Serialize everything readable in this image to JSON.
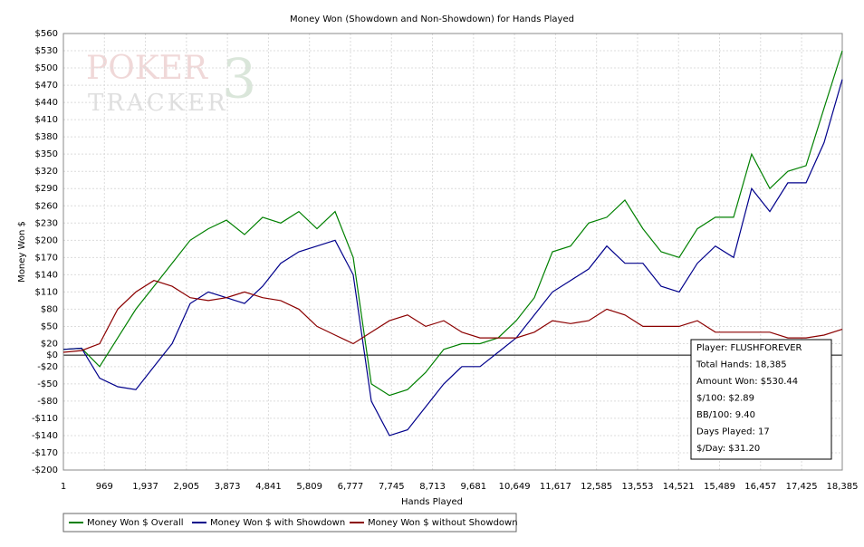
{
  "chart_data": {
    "type": "line",
    "title": "Money Won (Showdown and Non-Showdown) for Hands Played",
    "xlabel": "Hands Played",
    "ylabel": "Money Won $",
    "watermark": [
      "POKER",
      "TRACKER",
      "3"
    ],
    "x": [
      1,
      429,
      856,
      1284,
      1711,
      2139,
      2566,
      2994,
      3421,
      3849,
      4276,
      4704,
      5131,
      5559,
      5986,
      6414,
      6841,
      7269,
      7696,
      8124,
      8551,
      8979,
      9406,
      9834,
      10261,
      10689,
      11116,
      11544,
      11971,
      12399,
      12826,
      13254,
      13681,
      14109,
      14536,
      14964,
      15391,
      15819,
      16246,
      16674,
      17101,
      17529,
      17956,
      18385
    ],
    "series": [
      {
        "name": "Money Won $ Overall",
        "color": "#008000",
        "values": [
          10,
          12,
          -20,
          30,
          80,
          120,
          160,
          200,
          220,
          235,
          210,
          240,
          230,
          250,
          220,
          250,
          170,
          -50,
          -70,
          -60,
          -30,
          10,
          20,
          20,
          30,
          60,
          100,
          180,
          190,
          230,
          240,
          270,
          220,
          180,
          170,
          220,
          240,
          240,
          350,
          290,
          320,
          330,
          430,
          530
        ]
      },
      {
        "name": "Money Won $ with Showdown",
        "color": "#00008b",
        "values": [
          10,
          12,
          -40,
          -55,
          -60,
          -20,
          20,
          90,
          110,
          100,
          90,
          120,
          160,
          180,
          190,
          200,
          140,
          -80,
          -140,
          -130,
          -90,
          -50,
          -20,
          -20,
          5,
          30,
          70,
          110,
          130,
          150,
          190,
          160,
          160,
          120,
          110,
          160,
          190,
          170,
          290,
          250,
          300,
          300,
          370,
          480
        ]
      },
      {
        "name": "Money Won $ without Showdown",
        "color": "#8b0000",
        "values": [
          5,
          8,
          20,
          80,
          110,
          130,
          120,
          100,
          95,
          100,
          110,
          100,
          95,
          80,
          50,
          35,
          20,
          40,
          60,
          70,
          50,
          60,
          40,
          30,
          30,
          30,
          40,
          60,
          55,
          60,
          80,
          70,
          50,
          50,
          50,
          60,
          40,
          40,
          40,
          40,
          30,
          30,
          35,
          45
        ]
      }
    ],
    "xlim": [
      1,
      18385
    ],
    "xticks": [
      1,
      969,
      {
        "value": 1937,
        "label": "1,937"
      },
      {
        "value": 2905,
        "label": "2,905"
      },
      {
        "value": 3873,
        "label": "3,873"
      },
      {
        "value": 4841,
        "label": "4,841"
      },
      {
        "value": 5809,
        "label": "5,809"
      },
      {
        "value": 6777,
        "label": "6,777"
      },
      {
        "value": 7745,
        "label": "7,745"
      },
      {
        "value": 8713,
        "label": "8,713"
      },
      {
        "value": 9681,
        "label": "9,681"
      },
      {
        "value": 10649,
        "label": "10,649"
      },
      {
        "value": 11617,
        "label": "11,617"
      },
      {
        "value": 12585,
        "label": "12,585"
      },
      {
        "value": 13553,
        "label": "13,553"
      },
      {
        "value": 14521,
        "label": "14,521"
      },
      {
        "value": 15489,
        "label": "15,489"
      },
      {
        "value": 16457,
        "label": "16,457"
      },
      {
        "value": 17425,
        "label": "17,425"
      },
      {
        "value": 18385,
        "label": "18,385"
      }
    ],
    "ylim": [
      -200,
      560
    ],
    "yticks": [
      {
        "value": 560,
        "label": "$560"
      },
      {
        "value": 530,
        "label": "$530"
      },
      {
        "value": 500,
        "label": "$500"
      },
      {
        "value": 470,
        "label": "$470"
      },
      {
        "value": 440,
        "label": "$440"
      },
      {
        "value": 410,
        "label": "$410"
      },
      {
        "value": 380,
        "label": "$380"
      },
      {
        "value": 350,
        "label": "$350"
      },
      {
        "value": 320,
        "label": "$320"
      },
      {
        "value": 290,
        "label": "$290"
      },
      {
        "value": 260,
        "label": "$260"
      },
      {
        "value": 230,
        "label": "$230"
      },
      {
        "value": 200,
        "label": "$200"
      },
      {
        "value": 170,
        "label": "$170"
      },
      {
        "value": 140,
        "label": "$140"
      },
      {
        "value": 110,
        "label": "$110"
      },
      {
        "value": 80,
        "label": "$80"
      },
      {
        "value": 50,
        "label": "$50"
      },
      {
        "value": 20,
        "label": "$20"
      },
      {
        "value": 0,
        "label": "$0"
      },
      {
        "value": -20,
        "label": "-$20"
      },
      {
        "value": -50,
        "label": "-$50"
      },
      {
        "value": -80,
        "label": "-$80"
      },
      {
        "value": -110,
        "label": "-$110"
      },
      {
        "value": -140,
        "label": "-$140"
      },
      {
        "value": -170,
        "label": "-$170"
      },
      {
        "value": -200,
        "label": "-$200"
      }
    ],
    "grid": true,
    "legend": "bottom",
    "info_box": [
      "Player: FLUSHFOREVER",
      "Total Hands: 18,385",
      "Amount Won: $530.44",
      "$/100: $2.89",
      "BB/100: 9.40",
      "Days Played: 17",
      "$/Day: $31.20"
    ]
  }
}
